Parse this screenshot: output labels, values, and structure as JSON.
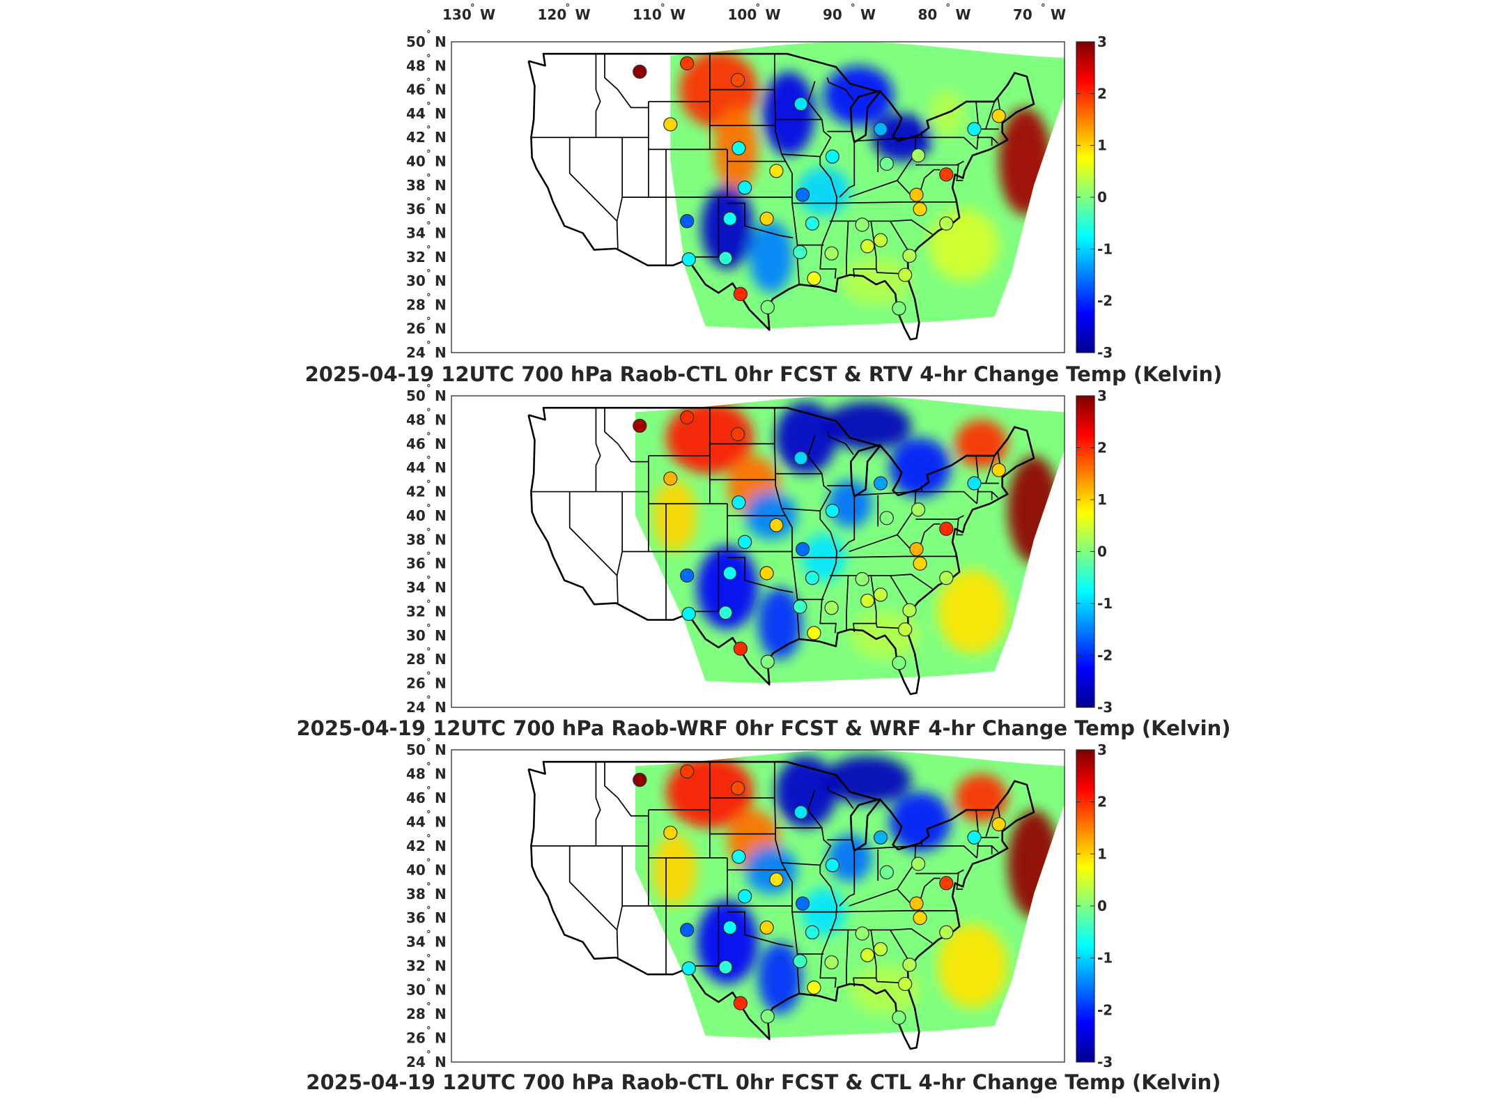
{
  "figure": {
    "top_lon_ticks": [
      "130",
      "120",
      "110",
      "100",
      "90",
      "80",
      "70"
    ],
    "lon_suffix": "W",
    "lat_ticks": [
      "50",
      "48",
      "46",
      "44",
      "42",
      "40",
      "38",
      "36",
      "34",
      "32",
      "30",
      "28",
      "26",
      "24"
    ],
    "lat_suffix": "N",
    "degree_symbol": "°",
    "colorbar_ticks": [
      "3",
      "2",
      "1",
      "0",
      "-1",
      "-2",
      "-3"
    ],
    "colorbar_range": [
      -3,
      3
    ],
    "colormap": "jet",
    "colormap_stops": [
      "#00008f",
      "#0000ff",
      "#0080ff",
      "#00ffff",
      "#80ff80",
      "#ffff00",
      "#ff8000",
      "#ff0000",
      "#800000"
    ]
  },
  "panels": [
    {
      "title": "2025-04-19 12UTC 700 hPa Raob-CTL 0hr FCST & RTV 4-hr Change Temp (Kelvin)",
      "field": "RTV 4-hr Change",
      "observations": [
        {
          "lon": -112.0,
          "lat": 47.5,
          "value": 2.9
        },
        {
          "lon": -106.6,
          "lat": 48.2,
          "value": 1.9
        },
        {
          "lon": -100.8,
          "lat": 46.8,
          "value": 1.8
        },
        {
          "lon": -108.5,
          "lat": 43.1,
          "value": 1.0
        },
        {
          "lon": -93.6,
          "lat": 44.8,
          "value": -0.9
        },
        {
          "lon": -84.5,
          "lat": 42.7,
          "value": -1.2
        },
        {
          "lon": -73.8,
          "lat": 42.7,
          "value": -0.8
        },
        {
          "lon": -71.0,
          "lat": 43.8,
          "value": 1.0
        },
        {
          "lon": -100.7,
          "lat": 41.1,
          "value": -0.7
        },
        {
          "lon": -96.4,
          "lat": 39.2,
          "value": 0.9
        },
        {
          "lon": -90.0,
          "lat": 40.4,
          "value": -0.8
        },
        {
          "lon": -83.8,
          "lat": 39.8,
          "value": -0.1
        },
        {
          "lon": -80.2,
          "lat": 40.5,
          "value": 0.2
        },
        {
          "lon": -77.0,
          "lat": 38.9,
          "value": 1.9
        },
        {
          "lon": -100.0,
          "lat": 37.8,
          "value": -0.8
        },
        {
          "lon": -93.4,
          "lat": 37.2,
          "value": -1.6
        },
        {
          "lon": -80.4,
          "lat": 37.2,
          "value": 1.1
        },
        {
          "lon": -106.6,
          "lat": 35.0,
          "value": -1.7
        },
        {
          "lon": -101.7,
          "lat": 35.2,
          "value": -0.7
        },
        {
          "lon": -97.5,
          "lat": 35.2,
          "value": 1.0
        },
        {
          "lon": -92.3,
          "lat": 34.8,
          "value": -0.6
        },
        {
          "lon": -86.6,
          "lat": 34.7,
          "value": 0.1
        },
        {
          "lon": -84.5,
          "lat": 33.4,
          "value": 0.4
        },
        {
          "lon": -80.0,
          "lat": 36.0,
          "value": 1.0
        },
        {
          "lon": -77.0,
          "lat": 34.8,
          "value": 0.3
        },
        {
          "lon": -106.4,
          "lat": 31.8,
          "value": -0.8
        },
        {
          "lon": -102.2,
          "lat": 31.9,
          "value": -0.5
        },
        {
          "lon": -93.7,
          "lat": 32.4,
          "value": -0.4
        },
        {
          "lon": -90.1,
          "lat": 32.3,
          "value": 0.2
        },
        {
          "lon": -86.0,
          "lat": 32.9,
          "value": 0.5
        },
        {
          "lon": -81.2,
          "lat": 32.1,
          "value": 0.3
        },
        {
          "lon": -100.5,
          "lat": 28.9,
          "value": 2.0
        },
        {
          "lon": -97.4,
          "lat": 27.8,
          "value": 0.0
        },
        {
          "lon": -92.1,
          "lat": 30.2,
          "value": 0.7
        },
        {
          "lon": -81.7,
          "lat": 30.5,
          "value": 0.4
        },
        {
          "lon": -82.4,
          "lat": 27.7,
          "value": 0.0
        }
      ]
    },
    {
      "title": "2025-04-19 12UTC 700 hPa Raob-WRF 0hr FCST & WRF 4-hr Change Temp (Kelvin)",
      "field": "WRF 4-hr Change",
      "observations": [
        {
          "lon": -112.0,
          "lat": 47.5,
          "value": 2.8
        },
        {
          "lon": -106.6,
          "lat": 48.2,
          "value": 2.0
        },
        {
          "lon": -100.8,
          "lat": 46.8,
          "value": 1.9
        },
        {
          "lon": -108.5,
          "lat": 43.1,
          "value": 1.2
        },
        {
          "lon": -93.6,
          "lat": 44.8,
          "value": -1.0
        },
        {
          "lon": -84.5,
          "lat": 42.7,
          "value": -1.3
        },
        {
          "lon": -73.8,
          "lat": 42.7,
          "value": -0.9
        },
        {
          "lon": -71.0,
          "lat": 43.8,
          "value": 1.0
        },
        {
          "lon": -100.7,
          "lat": 41.1,
          "value": -0.8
        },
        {
          "lon": -96.4,
          "lat": 39.2,
          "value": 1.0
        },
        {
          "lon": -90.0,
          "lat": 40.4,
          "value": -0.8
        },
        {
          "lon": -83.8,
          "lat": 39.8,
          "value": 0.0
        },
        {
          "lon": -80.2,
          "lat": 40.5,
          "value": 0.2
        },
        {
          "lon": -77.0,
          "lat": 38.9,
          "value": 2.0
        },
        {
          "lon": -100.0,
          "lat": 37.8,
          "value": -0.8
        },
        {
          "lon": -93.4,
          "lat": 37.2,
          "value": -1.6
        },
        {
          "lon": -80.4,
          "lat": 37.2,
          "value": 1.2
        },
        {
          "lon": -106.6,
          "lat": 35.0,
          "value": -1.6
        },
        {
          "lon": -101.7,
          "lat": 35.2,
          "value": -0.7
        },
        {
          "lon": -97.5,
          "lat": 35.2,
          "value": 1.0
        },
        {
          "lon": -92.3,
          "lat": 34.8,
          "value": -0.6
        },
        {
          "lon": -86.6,
          "lat": 34.7,
          "value": 0.1
        },
        {
          "lon": -84.5,
          "lat": 33.4,
          "value": 0.4
        },
        {
          "lon": -80.0,
          "lat": 36.0,
          "value": 1.0
        },
        {
          "lon": -77.0,
          "lat": 34.8,
          "value": 0.3
        },
        {
          "lon": -106.4,
          "lat": 31.8,
          "value": -0.8
        },
        {
          "lon": -102.2,
          "lat": 31.9,
          "value": -0.5
        },
        {
          "lon": -93.7,
          "lat": 32.4,
          "value": -0.4
        },
        {
          "lon": -90.1,
          "lat": 32.3,
          "value": 0.2
        },
        {
          "lon": -86.0,
          "lat": 32.9,
          "value": 0.5
        },
        {
          "lon": -81.2,
          "lat": 32.1,
          "value": 0.3
        },
        {
          "lon": -100.5,
          "lat": 28.9,
          "value": 2.0
        },
        {
          "lon": -97.4,
          "lat": 27.8,
          "value": 0.0
        },
        {
          "lon": -92.1,
          "lat": 30.2,
          "value": 0.7
        },
        {
          "lon": -81.7,
          "lat": 30.5,
          "value": 0.4
        },
        {
          "lon": -82.4,
          "lat": 27.7,
          "value": 0.0
        }
      ]
    },
    {
      "title": "2025-04-19 12UTC 700 hPa Raob-CTL 0hr FCST & CTL 4-hr Change Temp (Kelvin)",
      "field": "CTL 4-hr Change",
      "observations": [
        {
          "lon": -112.0,
          "lat": 47.5,
          "value": 2.9
        },
        {
          "lon": -106.6,
          "lat": 48.2,
          "value": 1.9
        },
        {
          "lon": -100.8,
          "lat": 46.8,
          "value": 1.8
        },
        {
          "lon": -108.5,
          "lat": 43.1,
          "value": 1.0
        },
        {
          "lon": -93.6,
          "lat": 44.8,
          "value": -0.9
        },
        {
          "lon": -84.5,
          "lat": 42.7,
          "value": -1.2
        },
        {
          "lon": -73.8,
          "lat": 42.7,
          "value": -0.8
        },
        {
          "lon": -71.0,
          "lat": 43.8,
          "value": 1.0
        },
        {
          "lon": -100.7,
          "lat": 41.1,
          "value": -0.7
        },
        {
          "lon": -96.4,
          "lat": 39.2,
          "value": 0.9
        },
        {
          "lon": -90.0,
          "lat": 40.4,
          "value": -0.8
        },
        {
          "lon": -83.8,
          "lat": 39.8,
          "value": -0.1
        },
        {
          "lon": -80.2,
          "lat": 40.5,
          "value": 0.2
        },
        {
          "lon": -77.0,
          "lat": 38.9,
          "value": 1.9
        },
        {
          "lon": -100.0,
          "lat": 37.8,
          "value": -0.8
        },
        {
          "lon": -93.4,
          "lat": 37.2,
          "value": -1.6
        },
        {
          "lon": -80.4,
          "lat": 37.2,
          "value": 1.1
        },
        {
          "lon": -106.6,
          "lat": 35.0,
          "value": -1.7
        },
        {
          "lon": -101.7,
          "lat": 35.2,
          "value": -0.7
        },
        {
          "lon": -97.5,
          "lat": 35.2,
          "value": 1.0
        },
        {
          "lon": -92.3,
          "lat": 34.8,
          "value": -0.6
        },
        {
          "lon": -86.6,
          "lat": 34.7,
          "value": 0.1
        },
        {
          "lon": -84.5,
          "lat": 33.4,
          "value": 0.4
        },
        {
          "lon": -80.0,
          "lat": 36.0,
          "value": 1.0
        },
        {
          "lon": -77.0,
          "lat": 34.8,
          "value": 0.3
        },
        {
          "lon": -106.4,
          "lat": 31.8,
          "value": -0.8
        },
        {
          "lon": -102.2,
          "lat": 31.9,
          "value": -0.5
        },
        {
          "lon": -93.7,
          "lat": 32.4,
          "value": -0.4
        },
        {
          "lon": -90.1,
          "lat": 32.3,
          "value": 0.2
        },
        {
          "lon": -86.0,
          "lat": 32.9,
          "value": 0.5
        },
        {
          "lon": -81.2,
          "lat": 32.1,
          "value": 0.3
        },
        {
          "lon": -100.5,
          "lat": 28.9,
          "value": 2.0
        },
        {
          "lon": -97.4,
          "lat": 27.8,
          "value": 0.0
        },
        {
          "lon": -92.1,
          "lat": 30.2,
          "value": 0.7
        },
        {
          "lon": -81.7,
          "lat": 30.5,
          "value": 0.4
        },
        {
          "lon": -82.4,
          "lat": 27.7,
          "value": 0.0
        }
      ]
    }
  ]
}
